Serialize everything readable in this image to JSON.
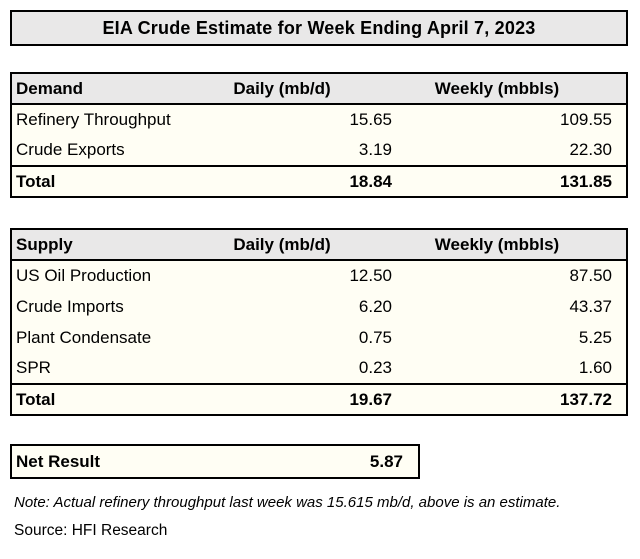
{
  "title": "EIA Crude Estimate for Week Ending April 7, 2023",
  "colors": {
    "header_bg": "#e9e8e8",
    "body_bg": "#fffef4",
    "border": "#000000",
    "page_bg": "#ffffff"
  },
  "chart_data": [
    {
      "type": "table",
      "title": "Demand",
      "columns": [
        "Demand",
        "Daily (mb/d)",
        "Weekly (mbbls)"
      ],
      "rows": [
        [
          "Refinery Throughput",
          "15.65",
          "109.55"
        ],
        [
          "Crude Exports",
          "3.19",
          "22.30"
        ],
        [
          "Total",
          "18.84",
          "131.85"
        ]
      ]
    },
    {
      "type": "table",
      "title": "Supply",
      "columns": [
        "Supply",
        "Daily (mb/d)",
        "Weekly (mbbls)"
      ],
      "rows": [
        [
          "US Oil Production",
          "12.50",
          "87.50"
        ],
        [
          "Crude Imports",
          "6.20",
          "43.37"
        ],
        [
          "Plant Condensate",
          "0.75",
          "5.25"
        ],
        [
          "SPR",
          "0.23",
          "1.60"
        ],
        [
          "Total",
          "19.67",
          "137.72"
        ]
      ]
    },
    {
      "type": "table",
      "title": "Net Result",
      "rows": [
        [
          "Net Result",
          "5.87"
        ]
      ]
    }
  ],
  "note": "Note: Actual refinery throughput last week was 15.615 mb/d, above is an estimate.",
  "source": "Source: HFI Research"
}
